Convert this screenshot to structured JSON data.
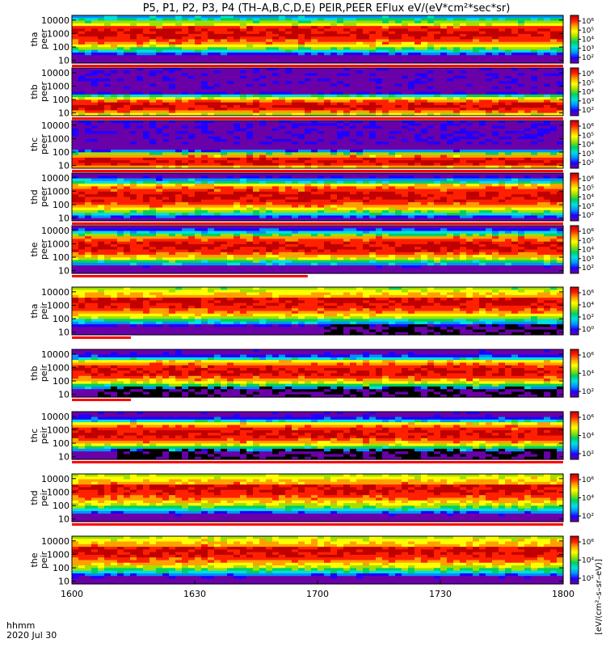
{
  "title": "P5, P1, P2, P3, P4 (TH–A,B,C,D,E) PEIR,PEER EFlux eV/(eV*cm²*sec*sr)",
  "footer": {
    "time_label": "hhmm",
    "date_label": "2020 Jul 30"
  },
  "colorbar_label": "[eV/(cm²–s–sr–eV)]",
  "colors": {
    "colormap": [
      "#6a00a8",
      "#1e00ff",
      "#0090ff",
      "#00e0e0",
      "#00d060",
      "#a0e000",
      "#ffff00",
      "#ffa000",
      "#ff2000",
      "#c00000"
    ],
    "bar_red": "#ff0000",
    "gap_white": "#ffffff"
  },
  "chart_data": {
    "type": "heatmap",
    "x_axis": {
      "range": [
        "1600",
        "1800"
      ],
      "ticks": [
        "1600",
        "1630",
        "1700",
        "1730",
        "1800"
      ]
    },
    "y_axis": {
      "scale": "log",
      "ticks": [
        "10",
        "100",
        "1000",
        "10000"
      ]
    },
    "panels": [
      {
        "probe": "tha",
        "instrument": "peer",
        "cb_ticks": [
          "10⁶",
          "10⁵",
          "10⁴",
          "10³",
          "10²"
        ],
        "bar_fraction": 1.0,
        "noise": 0.01,
        "peak_log": 3.0,
        "peak_width": 1.3,
        "gap_start": 1.0
      },
      {
        "probe": "thb",
        "instrument": "peer",
        "cb_ticks": [
          "10⁶",
          "10⁵",
          "10⁴",
          "10³",
          "10²"
        ],
        "bar_fraction": 1.0,
        "noise": 0.25,
        "peak_log": 1.5,
        "peak_width": 0.8,
        "gap_start": 1.0
      },
      {
        "probe": "thc",
        "instrument": "peer",
        "cb_ticks": [
          "10⁶",
          "10⁵",
          "10⁴",
          "10³",
          "10²"
        ],
        "bar_fraction": 1.0,
        "noise": 0.35,
        "peak_log": 1.3,
        "peak_width": 0.7,
        "gap_start": 1.0
      },
      {
        "probe": "thd",
        "instrument": "peer",
        "cb_ticks": [
          "10⁶",
          "10⁵",
          "10⁴",
          "10³",
          "10²"
        ],
        "bar_fraction": 1.0,
        "noise": 0.01,
        "peak_log": 2.6,
        "peak_width": 1.3,
        "gap_start": 1.0
      },
      {
        "probe": "the",
        "instrument": "peer",
        "cb_ticks": [
          "10⁶",
          "10⁵",
          "10⁴",
          "10³",
          "10²"
        ],
        "bar_fraction": 0.48,
        "noise": 0.01,
        "peak_log": 2.8,
        "peak_width": 1.2,
        "gap_start": 1.0
      },
      {
        "probe": "tha",
        "instrument": "peir",
        "cb_ticks": [
          "10⁶",
          "10⁴",
          "10²",
          "10⁰"
        ],
        "bar_fraction": 0.12,
        "noise": 0.12,
        "peak_log": 3.3,
        "peak_width": 1.5,
        "gap_start": 0.5
      },
      {
        "probe": "thb",
        "instrument": "peir",
        "cb_ticks": [
          "10⁶",
          "10⁴",
          "10²"
        ],
        "bar_fraction": 0.12,
        "noise": 0.12,
        "peak_log": 2.7,
        "peak_width": 1.1,
        "gap_start": 0.05
      },
      {
        "probe": "thc",
        "instrument": "peir",
        "cb_ticks": [
          "10⁶",
          "10⁴",
          "10²"
        ],
        "bar_fraction": 1.0,
        "noise": 0.12,
        "peak_log": 2.7,
        "peak_width": 1.1,
        "gap_start": 0.08
      },
      {
        "probe": "thd",
        "instrument": "peir",
        "cb_ticks": [
          "10⁶",
          "10⁴",
          "10²"
        ],
        "bar_fraction": 1.0,
        "noise": 0.02,
        "peak_log": 3.3,
        "peak_width": 1.6,
        "gap_start": 1.0
      },
      {
        "probe": "the",
        "instrument": "peir",
        "cb_ticks": [
          "10⁶",
          "10⁴",
          "10²"
        ],
        "bar_fraction": 0.0,
        "noise": 0.02,
        "peak_log": 3.3,
        "peak_width": 1.6,
        "gap_start": 1.0
      }
    ]
  }
}
